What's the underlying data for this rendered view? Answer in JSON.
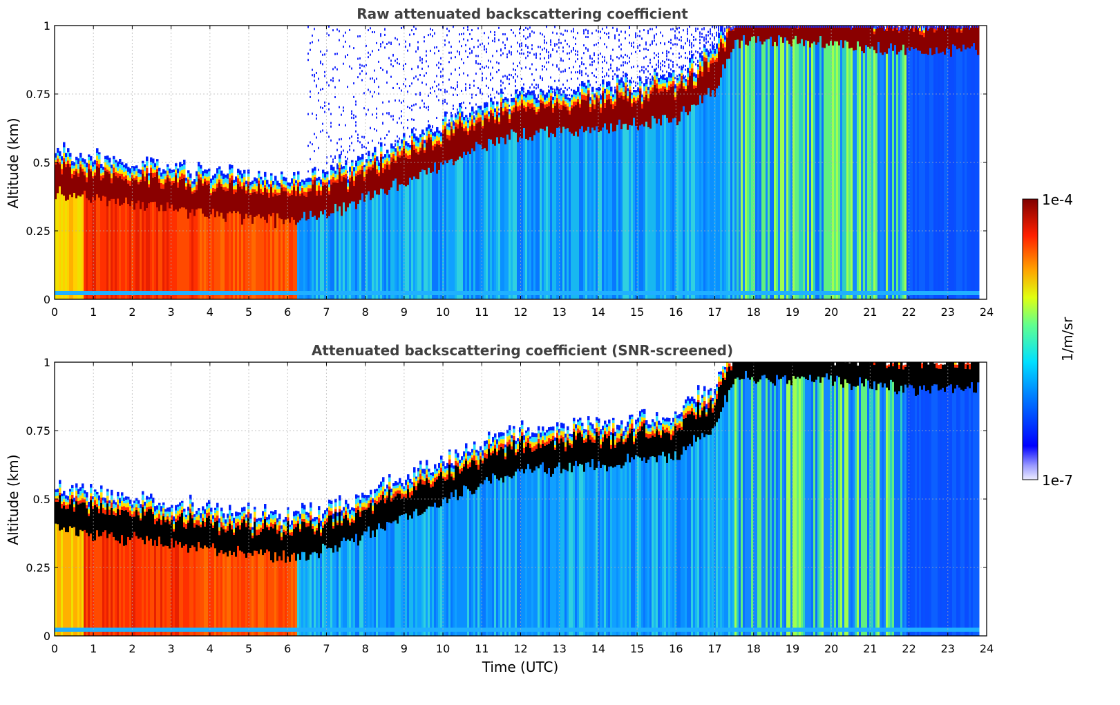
{
  "chart_data": [
    {
      "type": "heatmap",
      "title": "Raw attenuated backscattering coefficient",
      "xlabel": "",
      "ylabel": "Altitude (km)",
      "xlim": [
        0,
        24
      ],
      "ylim": [
        0,
        1
      ],
      "xticks": [
        "0",
        "1",
        "2",
        "3",
        "4",
        "5",
        "6",
        "7",
        "8",
        "9",
        "10",
        "11",
        "12",
        "13",
        "14",
        "15",
        "16",
        "17",
        "18",
        "19",
        "20",
        "21",
        "22",
        "23",
        "24"
      ],
      "yticks": [
        "0",
        "0.25",
        "0.5",
        "0.75",
        "1"
      ],
      "grid": true,
      "screened": false,
      "boundary_layer_top_km": [
        [
          0,
          0.42
        ],
        [
          1,
          0.4
        ],
        [
          2,
          0.38
        ],
        [
          3,
          0.36
        ],
        [
          4,
          0.34
        ],
        [
          5,
          0.33
        ],
        [
          6,
          0.31
        ],
        [
          7,
          0.34
        ],
        [
          8,
          0.4
        ],
        [
          9,
          0.46
        ],
        [
          10,
          0.52
        ],
        [
          11,
          0.59
        ],
        [
          12,
          0.63
        ],
        [
          13,
          0.64
        ],
        [
          14,
          0.65
        ],
        [
          15,
          0.67
        ],
        [
          16,
          0.69
        ],
        [
          17,
          0.8
        ],
        [
          17.5,
          0.97
        ],
        [
          18,
          0.97
        ],
        [
          19,
          0.97
        ],
        [
          20,
          0.96
        ],
        [
          21,
          0.95
        ],
        [
          22,
          0.93
        ],
        [
          23,
          0.94
        ],
        [
          23.8,
          0.94
        ]
      ],
      "regimes": [
        {
          "from": 0.0,
          "to": 0.7,
          "low_level": "yellow-orange"
        },
        {
          "from": 0.7,
          "to": 6.2,
          "low_level": "red-orange"
        },
        {
          "from": 6.2,
          "to": 17.5,
          "low_level": "cyan-blue"
        },
        {
          "from": 17.5,
          "to": 21.9,
          "low_level": "green-yellow streaks"
        },
        {
          "from": 21.9,
          "to": 23.8,
          "low_level": "blue"
        }
      ],
      "data_end_hour": 23.8
    },
    {
      "type": "heatmap",
      "title": "Attenuated backscattering coefficient (SNR-screened)",
      "xlabel": "Time (UTC)",
      "ylabel": "Altitude (km)",
      "xlim": [
        0,
        24
      ],
      "ylim": [
        0,
        1
      ],
      "xticks": [
        "0",
        "1",
        "2",
        "3",
        "4",
        "5",
        "6",
        "7",
        "8",
        "9",
        "10",
        "11",
        "12",
        "13",
        "14",
        "15",
        "16",
        "17",
        "18",
        "19",
        "20",
        "21",
        "22",
        "23",
        "24"
      ],
      "yticks": [
        "0",
        "0.25",
        "0.5",
        "0.75",
        "1"
      ],
      "grid": true,
      "screened": true,
      "saturated_color": "#000000",
      "boundary_layer_top_km": [
        [
          0,
          0.42
        ],
        [
          1,
          0.4
        ],
        [
          2,
          0.38
        ],
        [
          3,
          0.36
        ],
        [
          4,
          0.34
        ],
        [
          5,
          0.33
        ],
        [
          6,
          0.31
        ],
        [
          7,
          0.34
        ],
        [
          8,
          0.4
        ],
        [
          9,
          0.46
        ],
        [
          10,
          0.52
        ],
        [
          11,
          0.59
        ],
        [
          12,
          0.63
        ],
        [
          13,
          0.64
        ],
        [
          14,
          0.65
        ],
        [
          15,
          0.67
        ],
        [
          16,
          0.69
        ],
        [
          17,
          0.8
        ],
        [
          17.5,
          0.97
        ],
        [
          18,
          0.97
        ],
        [
          19,
          0.97
        ],
        [
          20,
          0.96
        ],
        [
          21,
          0.95
        ],
        [
          22,
          0.93
        ],
        [
          23,
          0.94
        ],
        [
          23.8,
          0.94
        ]
      ],
      "data_end_hour": 23.8
    }
  ],
  "colorbar": {
    "label": "1/m/sr",
    "max_label": "1e-4",
    "min_label": "1e-7",
    "scale": "log",
    "colormap": "jet",
    "range": [
      1e-07,
      0.0001
    ]
  }
}
